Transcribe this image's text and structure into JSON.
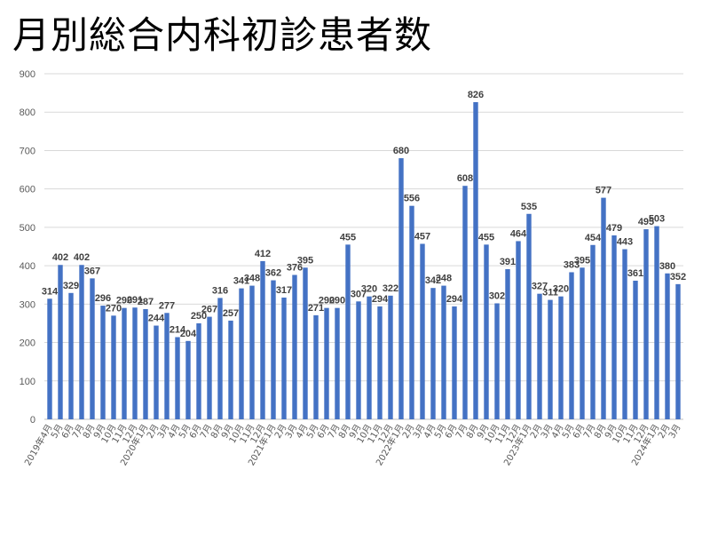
{
  "title": "月別総合内科初診患者数",
  "chart_data": {
    "type": "bar",
    "title": "月別総合内科初診患者数",
    "xlabel": "",
    "ylabel": "",
    "ylim": [
      0,
      900
    ],
    "yticks": [
      0,
      100,
      200,
      300,
      400,
      500,
      600,
      700,
      800,
      900
    ],
    "grid": true,
    "legend": "none",
    "bar_color": "#4472C4",
    "categories": [
      "2019年4月",
      "5月",
      "6月",
      "7月",
      "8月",
      "9月",
      "10月",
      "11月",
      "12月",
      "2020年1月",
      "2月",
      "3月",
      "4月",
      "5月",
      "6月",
      "7月",
      "8月",
      "9月",
      "10月",
      "11月",
      "12月",
      "2021年1月",
      "2月",
      "3月",
      "4月",
      "5月",
      "6月",
      "7月",
      "8月",
      "9月",
      "10月",
      "11月",
      "12月",
      "2022年1月",
      "2月",
      "3月",
      "4月",
      "5月",
      "6月",
      "7月",
      "8月",
      "9月",
      "10月",
      "11月",
      "12月",
      "2023年1月",
      "2月",
      "3月",
      "4月",
      "5月",
      "6月",
      "7月",
      "8月",
      "9月",
      "10月",
      "11月",
      "12月",
      "2024年1月",
      "2月",
      "3月"
    ],
    "values": [
      314,
      402,
      329,
      402,
      367,
      296,
      270,
      290,
      291,
      287,
      244,
      277,
      214,
      204,
      250,
      267,
      316,
      257,
      341,
      348,
      412,
      362,
      317,
      376,
      395,
      271,
      290,
      290,
      455,
      307,
      320,
      294,
      322,
      680,
      556,
      457,
      342,
      348,
      294,
      608,
      826,
      455,
      302,
      391,
      464,
      535,
      327,
      311,
      320,
      383,
      395,
      454,
      577,
      479,
      443,
      361,
      495,
      503,
      380,
      352
    ]
  }
}
